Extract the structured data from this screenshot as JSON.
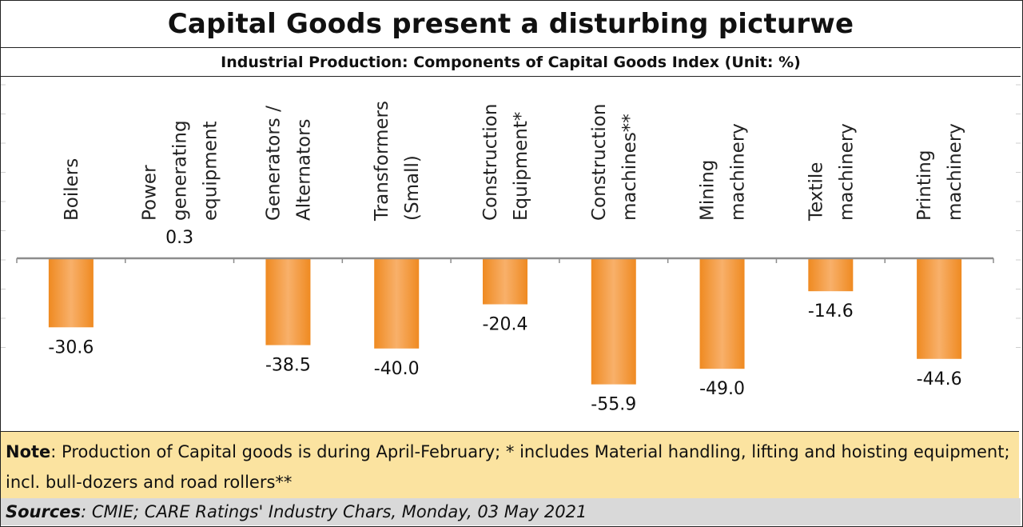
{
  "header": {
    "title": "Capital Goods present a disturbing picturwe",
    "subtitle": "Industrial Production: Components of Capital Goods Index (Unit: %)"
  },
  "note": {
    "label": "Note",
    "text": ": Production of Capital goods is during April-February; * includes Material handling, lifting and hoisting equipment;  incl. bull-dozers and road rollers**"
  },
  "sources": {
    "label": "Sources",
    "text": " : CMIE; CARE Ratings' Industry Chars, Monday, 03 May 2021"
  },
  "colors": {
    "bar_dark": "#ef8a21",
    "bar_light": "#f8b06a",
    "axis": "#8c8c8c"
  },
  "chart_data": {
    "type": "bar",
    "title": "Capital Goods present a disturbing picturwe",
    "subtitle": "Industrial Production: Components of Capital Goods Index (Unit: %)",
    "categories": [
      [
        "Boilers"
      ],
      [
        "Power",
        "generating",
        "equipment"
      ],
      [
        "Generators /",
        "Alternators"
      ],
      [
        "Transformers",
        "(Small)"
      ],
      [
        "Construction",
        "Equipment*"
      ],
      [
        "Construction",
        "machines**"
      ],
      [
        "Mining",
        "machinery"
      ],
      [
        "Textile",
        "machinery"
      ],
      [
        "Printing",
        "machinery"
      ]
    ],
    "values": [
      -30.6,
      0.3,
      -38.5,
      -40.0,
      -20.4,
      -55.9,
      -49.0,
      -14.6,
      -44.6
    ],
    "value_labels": [
      "-30.6",
      "0.3",
      "-38.5",
      "-40.0",
      "-20.4",
      "-55.9",
      "-49.0",
      "-14.6",
      "-44.6"
    ],
    "xlabel": "",
    "ylabel": "%",
    "ylim": [
      -65,
      75
    ],
    "grid": false,
    "legend": "none"
  }
}
